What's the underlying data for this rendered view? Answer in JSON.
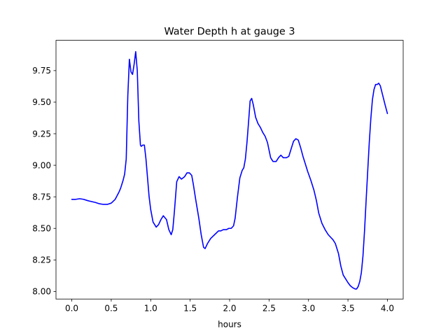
{
  "chart_data": {
    "type": "line",
    "title": "Water Depth h at gauge 3",
    "xlabel": "hours",
    "ylabel": "",
    "xlim": [
      -0.2,
      4.2
    ],
    "ylim": [
      7.94,
      9.99
    ],
    "x_ticks": [
      0.0,
      0.5,
      1.0,
      1.5,
      2.0,
      2.5,
      3.0,
      3.5,
      4.0
    ],
    "x_tick_labels": [
      "0.0",
      "0.5",
      "1.0",
      "1.5",
      "2.0",
      "2.5",
      "3.0",
      "3.5",
      "4.0"
    ],
    "y_ticks": [
      8.0,
      8.25,
      8.5,
      8.75,
      9.0,
      9.25,
      9.5,
      9.75
    ],
    "y_tick_labels": [
      "8.00",
      "8.25",
      "8.50",
      "8.75",
      "9.00",
      "9.25",
      "9.50",
      "9.75"
    ],
    "grid": false,
    "series": [
      {
        "color": "#0000ff",
        "x": [
          0.0,
          0.05,
          0.1,
          0.15,
          0.2,
          0.3,
          0.35,
          0.4,
          0.45,
          0.5,
          0.55,
          0.6,
          0.62,
          0.65,
          0.67,
          0.69,
          0.71,
          0.73,
          0.75,
          0.77,
          0.79,
          0.81,
          0.83,
          0.85,
          0.87,
          0.88,
          0.9,
          0.92,
          0.94,
          0.96,
          0.98,
          1.0,
          1.03,
          1.07,
          1.1,
          1.13,
          1.16,
          1.2,
          1.23,
          1.26,
          1.28,
          1.3,
          1.33,
          1.36,
          1.39,
          1.43,
          1.46,
          1.49,
          1.52,
          1.54,
          1.57,
          1.61,
          1.64,
          1.67,
          1.69,
          1.72,
          1.76,
          1.81,
          1.86,
          1.89,
          1.92,
          1.96,
          1.99,
          2.02,
          2.05,
          2.07,
          2.1,
          2.13,
          2.16,
          2.18,
          2.2,
          2.22,
          2.24,
          2.26,
          2.28,
          2.3,
          2.33,
          2.36,
          2.39,
          2.42,
          2.45,
          2.48,
          2.5,
          2.52,
          2.55,
          2.59,
          2.62,
          2.65,
          2.68,
          2.72,
          2.75,
          2.78,
          2.81,
          2.84,
          2.87,
          2.9,
          2.93,
          2.96,
          2.99,
          3.03,
          3.07,
          3.1,
          3.13,
          3.17,
          3.21,
          3.25,
          3.28,
          3.31,
          3.34,
          3.38,
          3.41,
          3.44,
          3.47,
          3.5,
          3.53,
          3.56,
          3.59,
          3.61,
          3.63,
          3.65,
          3.67,
          3.69,
          3.71,
          3.73,
          3.75,
          3.77,
          3.79,
          3.81,
          3.83,
          3.85,
          3.87,
          3.89,
          3.91,
          3.93,
          3.95,
          3.97,
          4.0
        ],
        "y": [
          8.73,
          8.73,
          8.735,
          8.73,
          8.72,
          8.705,
          8.695,
          8.69,
          8.69,
          8.7,
          8.73,
          8.79,
          8.82,
          8.88,
          8.93,
          9.05,
          9.55,
          9.84,
          9.74,
          9.72,
          9.8,
          9.9,
          9.75,
          9.35,
          9.16,
          9.15,
          9.16,
          9.16,
          9.05,
          8.9,
          8.75,
          8.65,
          8.55,
          8.51,
          8.53,
          8.57,
          8.6,
          8.57,
          8.49,
          8.45,
          8.49,
          8.63,
          8.87,
          8.91,
          8.89,
          8.91,
          8.94,
          8.94,
          8.92,
          8.85,
          8.73,
          8.58,
          8.45,
          8.35,
          8.34,
          8.38,
          8.42,
          8.45,
          8.48,
          8.48,
          8.49,
          8.49,
          8.5,
          8.5,
          8.52,
          8.58,
          8.75,
          8.9,
          8.96,
          8.98,
          9.05,
          9.18,
          9.34,
          9.51,
          9.53,
          9.48,
          9.38,
          9.33,
          9.3,
          9.26,
          9.23,
          9.18,
          9.12,
          9.06,
          9.03,
          9.03,
          9.06,
          9.08,
          9.06,
          9.06,
          9.07,
          9.13,
          9.19,
          9.21,
          9.2,
          9.14,
          9.07,
          9.01,
          8.95,
          8.88,
          8.8,
          8.72,
          8.62,
          8.54,
          8.49,
          8.45,
          8.43,
          8.41,
          8.38,
          8.3,
          8.2,
          8.13,
          8.1,
          8.07,
          8.045,
          8.03,
          8.02,
          8.02,
          8.04,
          8.08,
          8.15,
          8.28,
          8.48,
          8.72,
          8.95,
          9.18,
          9.37,
          9.52,
          9.6,
          9.64,
          9.64,
          9.65,
          9.63,
          9.58,
          9.53,
          9.48,
          9.41
        ]
      }
    ]
  }
}
